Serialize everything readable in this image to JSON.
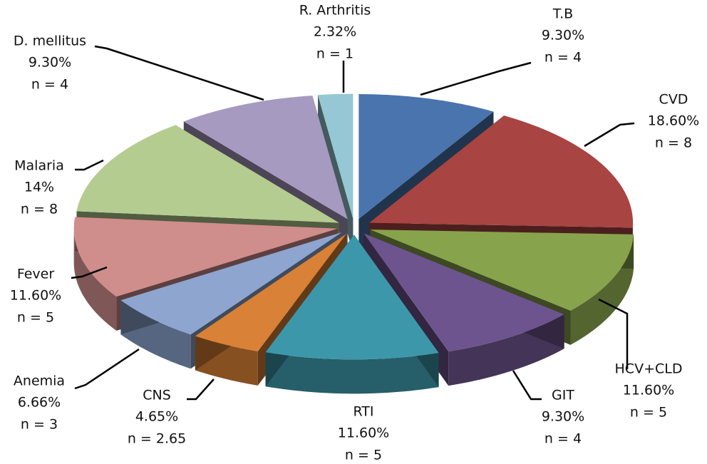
{
  "chart_data": {
    "type": "pie",
    "categories": [
      "T.B",
      "CVD",
      "HCV+CLD",
      "GIT",
      "RTI",
      "CNS",
      "Anemia",
      "Fever",
      "Malaria",
      "D. mellitus",
      "R. Arthritis"
    ],
    "values": [
      9.3,
      18.6,
      11.6,
      9.3,
      11.6,
      4.65,
      6.66,
      11.6,
      14,
      9.3,
      2.32
    ],
    "value_labels": [
      "9.30%",
      "18.60%",
      "11.60%",
      "9.30%",
      "11.60%",
      "4.65%",
      "6.66%",
      "11.60%",
      "14%",
      "9.30%",
      "2.32%"
    ],
    "n_labels": [
      "n = 4",
      "n = 8",
      "n = 5",
      "n = 4",
      "n = 5",
      "n = 2.65",
      "n = 3",
      "n = 5",
      "n = 8",
      "n = 4",
      "n = 1"
    ],
    "colors": [
      "#4a74ae",
      "#a84442",
      "#87a34c",
      "#6e548e",
      "#3d97aa",
      "#d98136",
      "#8da5cf",
      "#cf8d8c",
      "#b4cc90",
      "#a69ac0",
      "#95c8d4"
    ]
  }
}
